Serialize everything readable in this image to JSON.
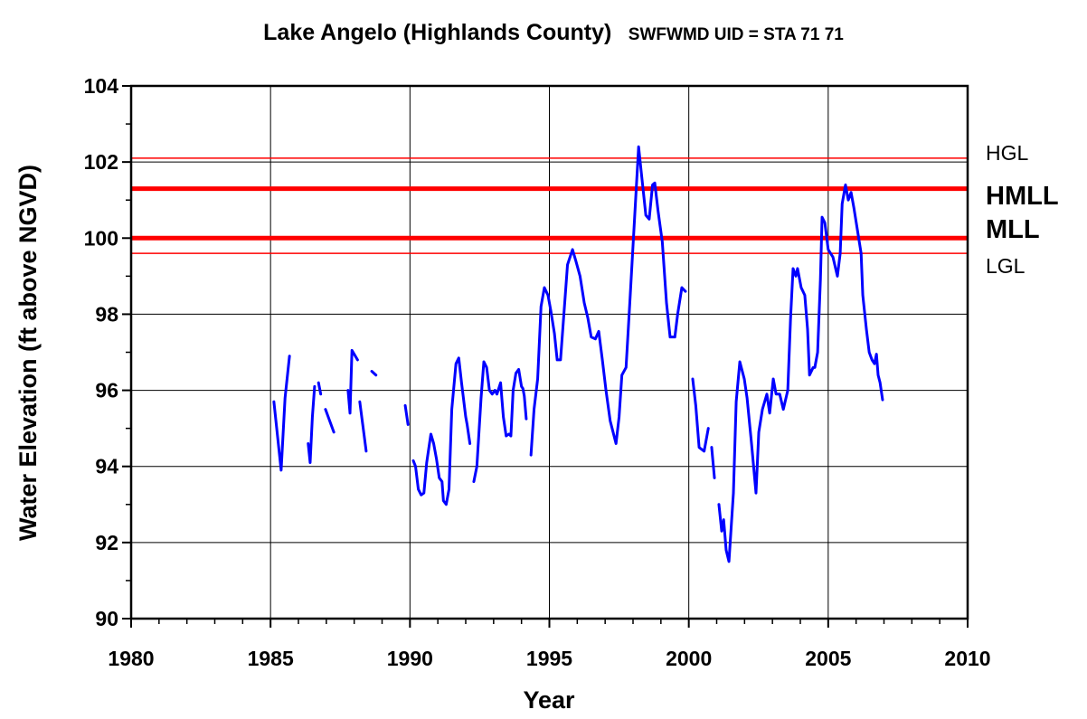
{
  "chart_data": {
    "type": "line",
    "title": "Lake Angelo (Highlands County)",
    "subtitle": "SWFWMD UID = STA 71 71",
    "x_label": "Year",
    "y_label": "Water Elevation (ft above NGVD)",
    "xlim": [
      1980,
      2010
    ],
    "xticks": [
      1980,
      1985,
      1990,
      1995,
      2000,
      2005,
      2010
    ],
    "x_minor_ticks": [
      1981,
      1982,
      1983,
      1984,
      1986,
      1987,
      1988,
      1989,
      1991,
      1992,
      1993,
      1994,
      1996,
      1997,
      1998,
      1999,
      2001,
      2002,
      2003,
      2004,
      2006,
      2007,
      2008,
      2009
    ],
    "ylim": [
      90,
      104
    ],
    "yticks": [
      90,
      92,
      94,
      96,
      98,
      100,
      102,
      104
    ],
    "y_minor_ticks": [
      91,
      93,
      95,
      97,
      99,
      101,
      103
    ],
    "grid": true,
    "reference_lines": [
      {
        "label": "HGL",
        "value": 102.1,
        "color": "#ff0000",
        "bold": false
      },
      {
        "label": "HMLL",
        "value": 101.3,
        "color": "#ff0000",
        "bold": true
      },
      {
        "label": "MLL",
        "value": 100.0,
        "color": "#ff0000",
        "bold": true
      },
      {
        "label": "LGL",
        "value": 99.6,
        "color": "#ff0000",
        "bold": false
      }
    ],
    "x": [
      1985.12,
      1985.25,
      1985.38,
      1985.52,
      1985.68,
      null,
      1986.35,
      1986.42,
      1986.5,
      1986.58,
      null,
      1986.72,
      1986.8,
      null,
      1986.97,
      1987.27,
      null,
      1987.78,
      1987.85,
      1987.92,
      1988.12,
      null,
      1988.2,
      1988.43,
      null,
      1988.63,
      1988.78,
      null,
      1989.83,
      1989.93,
      null,
      1990.12,
      1990.2,
      1990.3,
      1990.4,
      1990.5,
      1990.6,
      1990.75,
      1990.85,
      1990.95,
      1991.05,
      1991.15,
      1991.2,
      1991.3,
      1991.4,
      1991.5,
      1991.65,
      1991.75,
      1991.85,
      1992.0,
      1992.05,
      1992.15,
      null,
      1992.29,
      1992.4,
      1992.55,
      1992.65,
      1992.75,
      1992.85,
      1992.95,
      1993.05,
      1993.12,
      1993.25,
      1993.35,
      1993.45,
      1993.55,
      1993.62,
      1993.7,
      1993.8,
      1993.9,
      1994.0,
      1994.05,
      1994.1,
      1994.17,
      null,
      1994.34,
      1994.45,
      1994.58,
      1994.7,
      1994.82,
      1994.95,
      1995.05,
      1995.18,
      1995.28,
      1995.4,
      1995.5,
      1995.65,
      1995.83,
      1995.95,
      1996.1,
      1996.25,
      1996.38,
      1996.5,
      1996.65,
      1996.77,
      1996.9,
      1997.03,
      1997.18,
      1997.39,
      1997.5,
      1997.6,
      1997.75,
      1997.9,
      1998.0,
      1998.2,
      1998.3,
      1998.46,
      1998.58,
      1998.7,
      1998.78,
      1998.9,
      1999.05,
      1999.2,
      1999.33,
      1999.5,
      1999.6,
      1999.75,
      1999.88,
      null,
      2000.14,
      2000.25,
      2000.37,
      2000.55,
      2000.7,
      null,
      2000.82,
      2000.92,
      null,
      2001.08,
      2001.18,
      2001.25,
      2001.34,
      2001.44,
      2001.6,
      2001.7,
      2001.83,
      2001.99,
      2002.09,
      2002.25,
      2002.41,
      2002.51,
      2002.64,
      2002.8,
      2002.9,
      2003.03,
      2003.13,
      2003.26,
      2003.39,
      2003.55,
      2003.65,
      2003.74,
      2003.84,
      2003.9,
      2004.03,
      2004.16,
      2004.26,
      2004.33,
      2004.46,
      2004.52,
      2004.62,
      2004.72,
      2004.78,
      2004.88,
      2005.0,
      2005.17,
      2005.33,
      2005.43,
      2005.5,
      2005.62,
      2005.72,
      2005.82,
      2005.92,
      2006.05,
      2006.18,
      2006.24,
      2006.37,
      2006.47,
      2006.57,
      2006.66,
      2006.73,
      2006.79,
      2006.86,
      2006.95
    ],
    "series": [
      {
        "name": "Water Elevation",
        "color": "#0000ff",
        "values": [
          95.7,
          94.8,
          93.9,
          95.8,
          96.9,
          null,
          94.6,
          94.1,
          95.3,
          96.1,
          null,
          96.2,
          95.9,
          null,
          95.5,
          94.9,
          null,
          96.0,
          95.4,
          97.05,
          96.8,
          null,
          95.7,
          94.4,
          null,
          96.5,
          96.4,
          null,
          95.6,
          95.1,
          null,
          94.15,
          94.0,
          93.4,
          93.25,
          93.3,
          94.1,
          94.85,
          94.6,
          94.2,
          93.7,
          93.6,
          93.1,
          93.0,
          93.4,
          95.5,
          96.7,
          96.85,
          96.2,
          95.3,
          95.1,
          94.6,
          null,
          93.6,
          94.0,
          95.8,
          96.75,
          96.6,
          96.0,
          95.9,
          96.0,
          95.9,
          96.2,
          95.3,
          94.8,
          94.85,
          94.8,
          96.0,
          96.45,
          96.55,
          96.1,
          96.05,
          95.85,
          95.25,
          null,
          94.3,
          95.5,
          96.3,
          98.2,
          98.7,
          98.5,
          98.1,
          97.5,
          96.8,
          96.8,
          97.8,
          99.3,
          99.7,
          99.4,
          99.0,
          98.3,
          97.9,
          97.4,
          97.35,
          97.55,
          96.8,
          96.0,
          95.2,
          94.6,
          95.3,
          96.4,
          96.6,
          98.5,
          99.8,
          102.4,
          101.7,
          100.6,
          100.5,
          101.4,
          101.45,
          100.7,
          99.9,
          98.3,
          97.4,
          97.4,
          98.0,
          98.7,
          98.6,
          null,
          96.3,
          95.6,
          94.5,
          94.4,
          95.0,
          null,
          94.5,
          93.7,
          null,
          93.0,
          92.3,
          92.6,
          91.8,
          91.5,
          93.3,
          95.7,
          96.75,
          96.3,
          95.8,
          94.6,
          93.3,
          94.9,
          95.5,
          95.9,
          95.4,
          96.3,
          95.9,
          95.9,
          95.5,
          96.0,
          97.9,
          99.2,
          99.0,
          99.2,
          98.7,
          98.5,
          97.6,
          96.4,
          96.6,
          96.6,
          97.0,
          98.9,
          100.55,
          100.4,
          99.7,
          99.5,
          99.0,
          99.6,
          100.9,
          101.4,
          101.0,
          101.2,
          100.8,
          100.2,
          99.6,
          98.5,
          97.6,
          97.0,
          96.8,
          96.7,
          96.95,
          96.4,
          96.2,
          95.75
        ]
      }
    ]
  }
}
